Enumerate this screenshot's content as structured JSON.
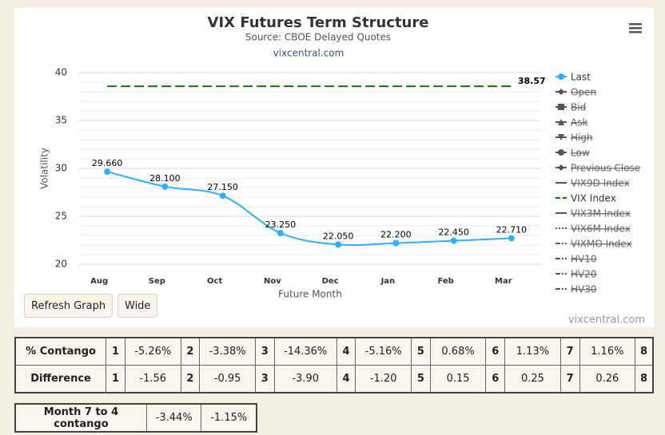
{
  "chart_data": {
    "type": "line",
    "title": "VIX Futures Term Structure",
    "subtitle": "Source: CBOE Delayed Quotes",
    "source_link": "vixcentral.com",
    "credits": "vixcentral.com",
    "x_label": "Future Month",
    "y_label": "Volatility",
    "categories": [
      "Aug",
      "Sep",
      "Oct",
      "Nov",
      "Dec",
      "Jan",
      "Feb",
      "Mar"
    ],
    "ylim": [
      20,
      40
    ],
    "yticks": [
      20,
      25,
      30,
      35,
      40
    ],
    "grid": true,
    "series": [
      {
        "name": "Last",
        "color": "#2caffe",
        "visible": true,
        "symbol": "circle",
        "values": [
          29.66,
          28.1,
          27.15,
          23.25,
          22.05,
          22.2,
          22.45,
          22.71
        ],
        "value_labels": [
          "29.660",
          "28.100",
          "27.150",
          "23.250",
          "22.050",
          "22.200",
          "22.450",
          "22.710"
        ]
      },
      {
        "name": "Open",
        "visible": false,
        "symbol": "diamond"
      },
      {
        "name": "Bid",
        "visible": false,
        "symbol": "square"
      },
      {
        "name": "Ask",
        "visible": false,
        "symbol": "triangle"
      },
      {
        "name": "High",
        "visible": false,
        "symbol": "triangle-down"
      },
      {
        "name": "Low",
        "visible": false,
        "symbol": "circle"
      },
      {
        "name": "Previous Close",
        "visible": false,
        "symbol": "diamond"
      },
      {
        "name": "VIX9D Index",
        "visible": false,
        "symbol": "solid"
      },
      {
        "name": "VIX Index",
        "color": "#008000",
        "visible": true,
        "symbol": "dash",
        "values": [
          38.57,
          38.57,
          38.57,
          38.57,
          38.57,
          38.57,
          38.57,
          38.57
        ]
      },
      {
        "name": "VIX3M Index",
        "visible": false,
        "symbol": "solid"
      },
      {
        "name": "VIX6M Index",
        "visible": false,
        "symbol": "dot"
      },
      {
        "name": "VIXMO Index",
        "visible": false,
        "symbol": "dashdot"
      },
      {
        "name": "HV10",
        "visible": false,
        "symbol": "dashdot"
      },
      {
        "name": "HV20",
        "visible": false,
        "symbol": "dashdot"
      },
      {
        "name": "HV30",
        "visible": false,
        "symbol": "dashdot"
      }
    ]
  },
  "buttons": [
    "Refresh Graph",
    "Wide"
  ],
  "contango_table": {
    "rows": [
      [
        "% Contango",
        "1",
        "-5.26%",
        "2",
        "-3.38%",
        "3",
        "-14.36%",
        "4",
        "-5.16%",
        "5",
        "0.68%",
        "6",
        "1.13%",
        "7",
        "1.16%",
        "8"
      ],
      [
        "Difference",
        "1",
        "-1.56",
        "2",
        "-0.95",
        "3",
        "-3.90",
        "4",
        "-1.20",
        "5",
        "0.15",
        "6",
        "0.25",
        "7",
        "0.26",
        "8"
      ]
    ]
  },
  "month_table": {
    "rows": [
      [
        "Month 7 to 4 contango",
        "-3.44%",
        "-1.15%"
      ]
    ]
  }
}
